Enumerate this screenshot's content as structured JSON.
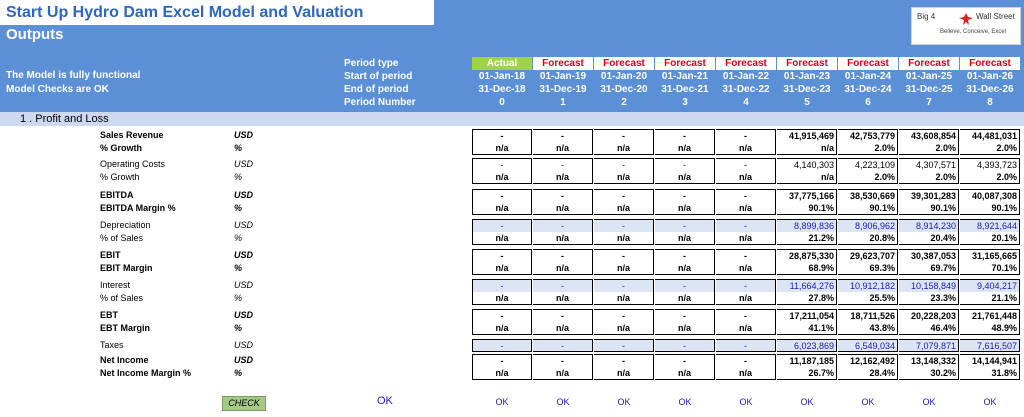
{
  "header": {
    "title": "Start Up Hydro Dam Excel Model and Valuation",
    "subtitle": "Outputs",
    "status_lines": [
      "The Model is fully functional",
      "Model Checks are OK"
    ],
    "logo": {
      "text_left": "Big 4",
      "text_right": "Wall Street",
      "tagline": "Believe, Conceive, Excel"
    }
  },
  "period_header": {
    "labels": [
      "Period type",
      "Start of period",
      "End of period",
      "Period Number"
    ],
    "columns": [
      {
        "type": "Actual",
        "start": "01-Jan-18",
        "end": "31-Dec-18",
        "number": "0"
      },
      {
        "type": "Forecast",
        "start": "01-Jan-19",
        "end": "31-Dec-19",
        "number": "1"
      },
      {
        "type": "Forecast",
        "start": "01-Jan-20",
        "end": "31-Dec-20",
        "number": "2"
      },
      {
        "type": "Forecast",
        "start": "01-Jan-21",
        "end": "31-Dec-21",
        "number": "3"
      },
      {
        "type": "Forecast",
        "start": "01-Jan-22",
        "end": "31-Dec-22",
        "number": "4"
      },
      {
        "type": "Forecast",
        "start": "01-Jan-23",
        "end": "31-Dec-23",
        "number": "5"
      },
      {
        "type": "Forecast",
        "start": "01-Jan-24",
        "end": "31-Dec-24",
        "number": "6"
      },
      {
        "type": "Forecast",
        "start": "01-Jan-25",
        "end": "31-Dec-25",
        "number": "7"
      },
      {
        "type": "Forecast",
        "start": "01-Jan-26",
        "end": "31-Dec-26",
        "number": "8"
      }
    ]
  },
  "section": {
    "title": "1 .  Profit and Loss"
  },
  "groups": [
    {
      "style": "normal",
      "row1": {
        "label": "Sales Revenue",
        "unit": "USD",
        "bold": true,
        "values": [
          "-",
          "-",
          "-",
          "-",
          "-",
          "41,915,469",
          "42,753,779",
          "43,608,854",
          "44,481,031"
        ]
      },
      "row2": {
        "label": "% Growth",
        "unit": "%",
        "bold": true,
        "values": [
          "n/a",
          "n/a",
          "n/a",
          "n/a",
          "n/a",
          "n/a",
          "2.0%",
          "2.0%",
          "2.0%"
        ]
      }
    },
    {
      "style": "normal",
      "row1": {
        "label": "Operating Costs",
        "unit": "USD",
        "bold": false,
        "values": [
          "-",
          "-",
          "-",
          "-",
          "-",
          "4,140,303",
          "4,223,109",
          "4,307,571",
          "4,393,723"
        ]
      },
      "row2": {
        "label": "% Growth",
        "unit": "%",
        "bold": false,
        "values": [
          "n/a",
          "n/a",
          "n/a",
          "n/a",
          "n/a",
          "n/a",
          "2.0%",
          "2.0%",
          "2.0%"
        ]
      }
    },
    {
      "style": "normal",
      "row1": {
        "label": "EBITDA",
        "unit": "USD",
        "bold": true,
        "values": [
          "-",
          "-",
          "-",
          "-",
          "-",
          "37,775,166",
          "38,530,669",
          "39,301,283",
          "40,087,308"
        ]
      },
      "row2": {
        "label": "EBITDA Margin %",
        "unit": "%",
        "bold": true,
        "values": [
          "n/a",
          "n/a",
          "n/a",
          "n/a",
          "n/a",
          "90.1%",
          "90.1%",
          "90.1%",
          "90.1%"
        ]
      }
    },
    {
      "style": "input",
      "row1": {
        "label": "Depreciation",
        "unit": "USD",
        "bold": false,
        "values": [
          "-",
          "-",
          "-",
          "-",
          "-",
          "8,899,836",
          "8,906,962",
          "8,914,230",
          "8,921,644"
        ]
      },
      "row2": {
        "label": "% of Sales",
        "unit": "%",
        "bold": false,
        "values": [
          "n/a",
          "n/a",
          "n/a",
          "n/a",
          "n/a",
          "21.2%",
          "20.8%",
          "20.4%",
          "20.1%"
        ]
      }
    },
    {
      "style": "normal",
      "row1": {
        "label": "EBIT",
        "unit": "USD",
        "bold": true,
        "values": [
          "-",
          "-",
          "-",
          "-",
          "-",
          "28,875,330",
          "29,623,707",
          "30,387,053",
          "31,165,665"
        ]
      },
      "row2": {
        "label": "EBIT Margin",
        "unit": "%",
        "bold": true,
        "values": [
          "n/a",
          "n/a",
          "n/a",
          "n/a",
          "n/a",
          "68.9%",
          "69.3%",
          "69.7%",
          "70.1%"
        ]
      }
    },
    {
      "style": "input",
      "row1": {
        "label": "Interest",
        "unit": "USD",
        "bold": false,
        "values": [
          "-",
          "-",
          "-",
          "-",
          "-",
          "11,664,276",
          "10,912,182",
          "10,158,849",
          "9,404,217"
        ]
      },
      "row2": {
        "label": "% of Sales",
        "unit": "%",
        "bold": false,
        "values": [
          "n/a",
          "n/a",
          "n/a",
          "n/a",
          "n/a",
          "27.8%",
          "25.5%",
          "23.3%",
          "21.1%"
        ]
      }
    },
    {
      "style": "normal",
      "row1": {
        "label": "EBT",
        "unit": "USD",
        "bold": true,
        "values": [
          "-",
          "-",
          "-",
          "-",
          "-",
          "17,211,054",
          "18,711,526",
          "20,228,203",
          "21,761,448"
        ]
      },
      "row2": {
        "label": "EBT Margin",
        "unit": "%",
        "bold": true,
        "values": [
          "n/a",
          "n/a",
          "n/a",
          "n/a",
          "n/a",
          "41.1%",
          "43.8%",
          "46.4%",
          "48.9%"
        ]
      }
    },
    {
      "style": "input-single",
      "row1": {
        "label": "Taxes",
        "unit": "USD",
        "bold": false,
        "values": [
          "-",
          "-",
          "-",
          "-",
          "-",
          "6,023,869",
          "6,549,034",
          "7,079,871",
          "7,616,507"
        ]
      }
    },
    {
      "style": "normal",
      "row1": {
        "label": "Net Income",
        "unit": "USD",
        "bold": true,
        "values": [
          "-",
          "-",
          "-",
          "-",
          "-",
          "11,187,185",
          "12,162,492",
          "13,148,332",
          "14,144,941"
        ]
      },
      "row2": {
        "label": "Net Income Margin %",
        "unit": "%",
        "bold": true,
        "values": [
          "n/a",
          "n/a",
          "n/a",
          "n/a",
          "n/a",
          "26.7%",
          "28.4%",
          "30.2%",
          "31.8%"
        ]
      }
    }
  ],
  "check_row": {
    "button_label": "CHECK",
    "main_ok": "OK",
    "values": [
      "OK",
      "OK",
      "OK",
      "OK",
      "OK",
      "OK",
      "OK",
      "OK",
      "OK"
    ]
  }
}
